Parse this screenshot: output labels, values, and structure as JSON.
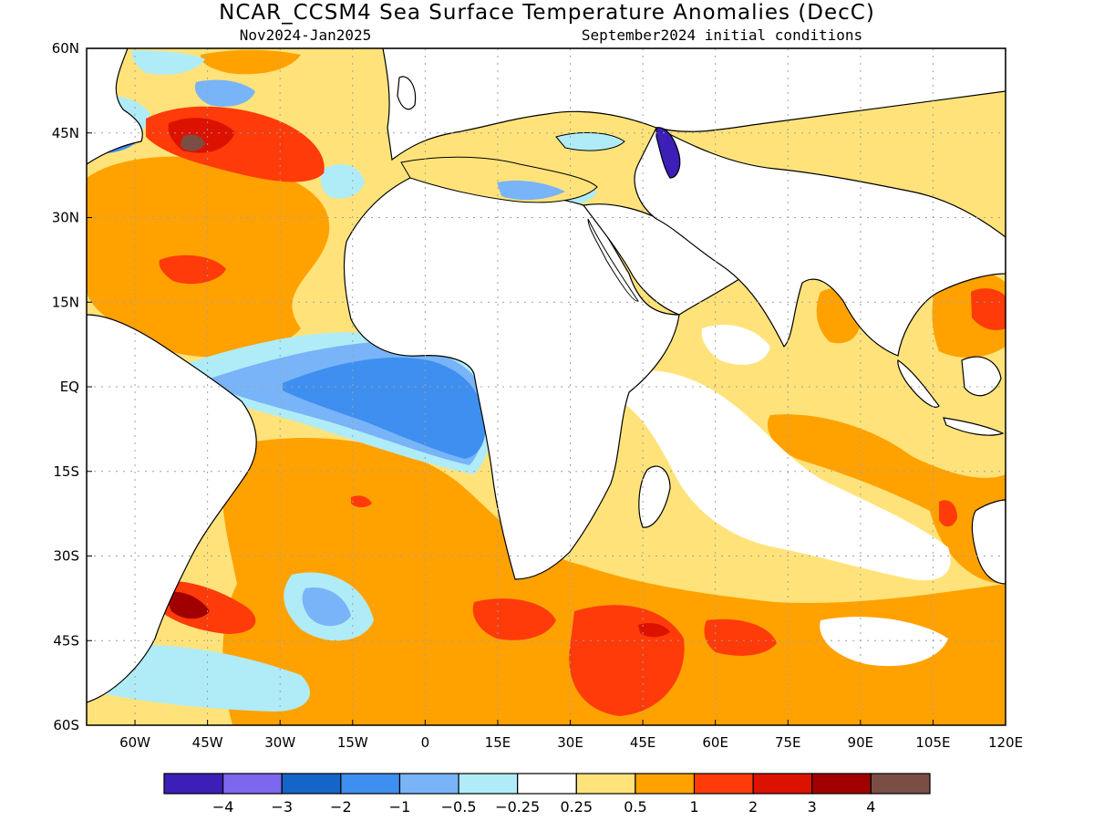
{
  "header": {
    "title": "NCAR_CCSM4 Sea Surface Temperature Anomalies (DecC)",
    "period": "Nov2024-Jan2025",
    "init": "September2024 initial conditions"
  },
  "map": {
    "lon_range": [
      -70,
      120
    ],
    "lat_range": [
      -60,
      60
    ],
    "lon_ticks": [
      {
        "v": -60,
        "label": "60W"
      },
      {
        "v": -45,
        "label": "45W"
      },
      {
        "v": -30,
        "label": "30W"
      },
      {
        "v": -15,
        "label": "15W"
      },
      {
        "v": 0,
        "label": "0"
      },
      {
        "v": 15,
        "label": "15E"
      },
      {
        "v": 30,
        "label": "30E"
      },
      {
        "v": 45,
        "label": "45E"
      },
      {
        "v": 60,
        "label": "60E"
      },
      {
        "v": 75,
        "label": "75E"
      },
      {
        "v": 90,
        "label": "90E"
      },
      {
        "v": 105,
        "label": "105E"
      },
      {
        "v": 120,
        "label": "120E"
      }
    ],
    "lat_ticks": [
      {
        "v": 60,
        "label": "60N"
      },
      {
        "v": 45,
        "label": "45N"
      },
      {
        "v": 30,
        "label": "30N"
      },
      {
        "v": 15,
        "label": "15N"
      },
      {
        "v": 0,
        "label": "EQ"
      },
      {
        "v": -15,
        "label": "15S"
      },
      {
        "v": -30,
        "label": "30S"
      },
      {
        "v": -45,
        "label": "45S"
      },
      {
        "v": -60,
        "label": "60S"
      }
    ],
    "grid": true
  },
  "colorbar": {
    "colors": [
      "#3b1fb7",
      "#7b68ee",
      "#1565c8",
      "#3e8ff0",
      "#78b4f7",
      "#b0ecf7",
      "#ffffff",
      "#ffe37a",
      "#ffa200",
      "#ff3b0a",
      "#dd1100",
      "#a00000",
      "#7a4e44"
    ],
    "labels": [
      "−4",
      "−3",
      "−2",
      "−1",
      "−0.5",
      "−0.25",
      "0.25",
      "0.5",
      "1",
      "2",
      "3",
      "4"
    ]
  },
  "colors": {
    "land": "#ffffff",
    "coast": "#000000",
    "grid": "#a0a0a0"
  }
}
